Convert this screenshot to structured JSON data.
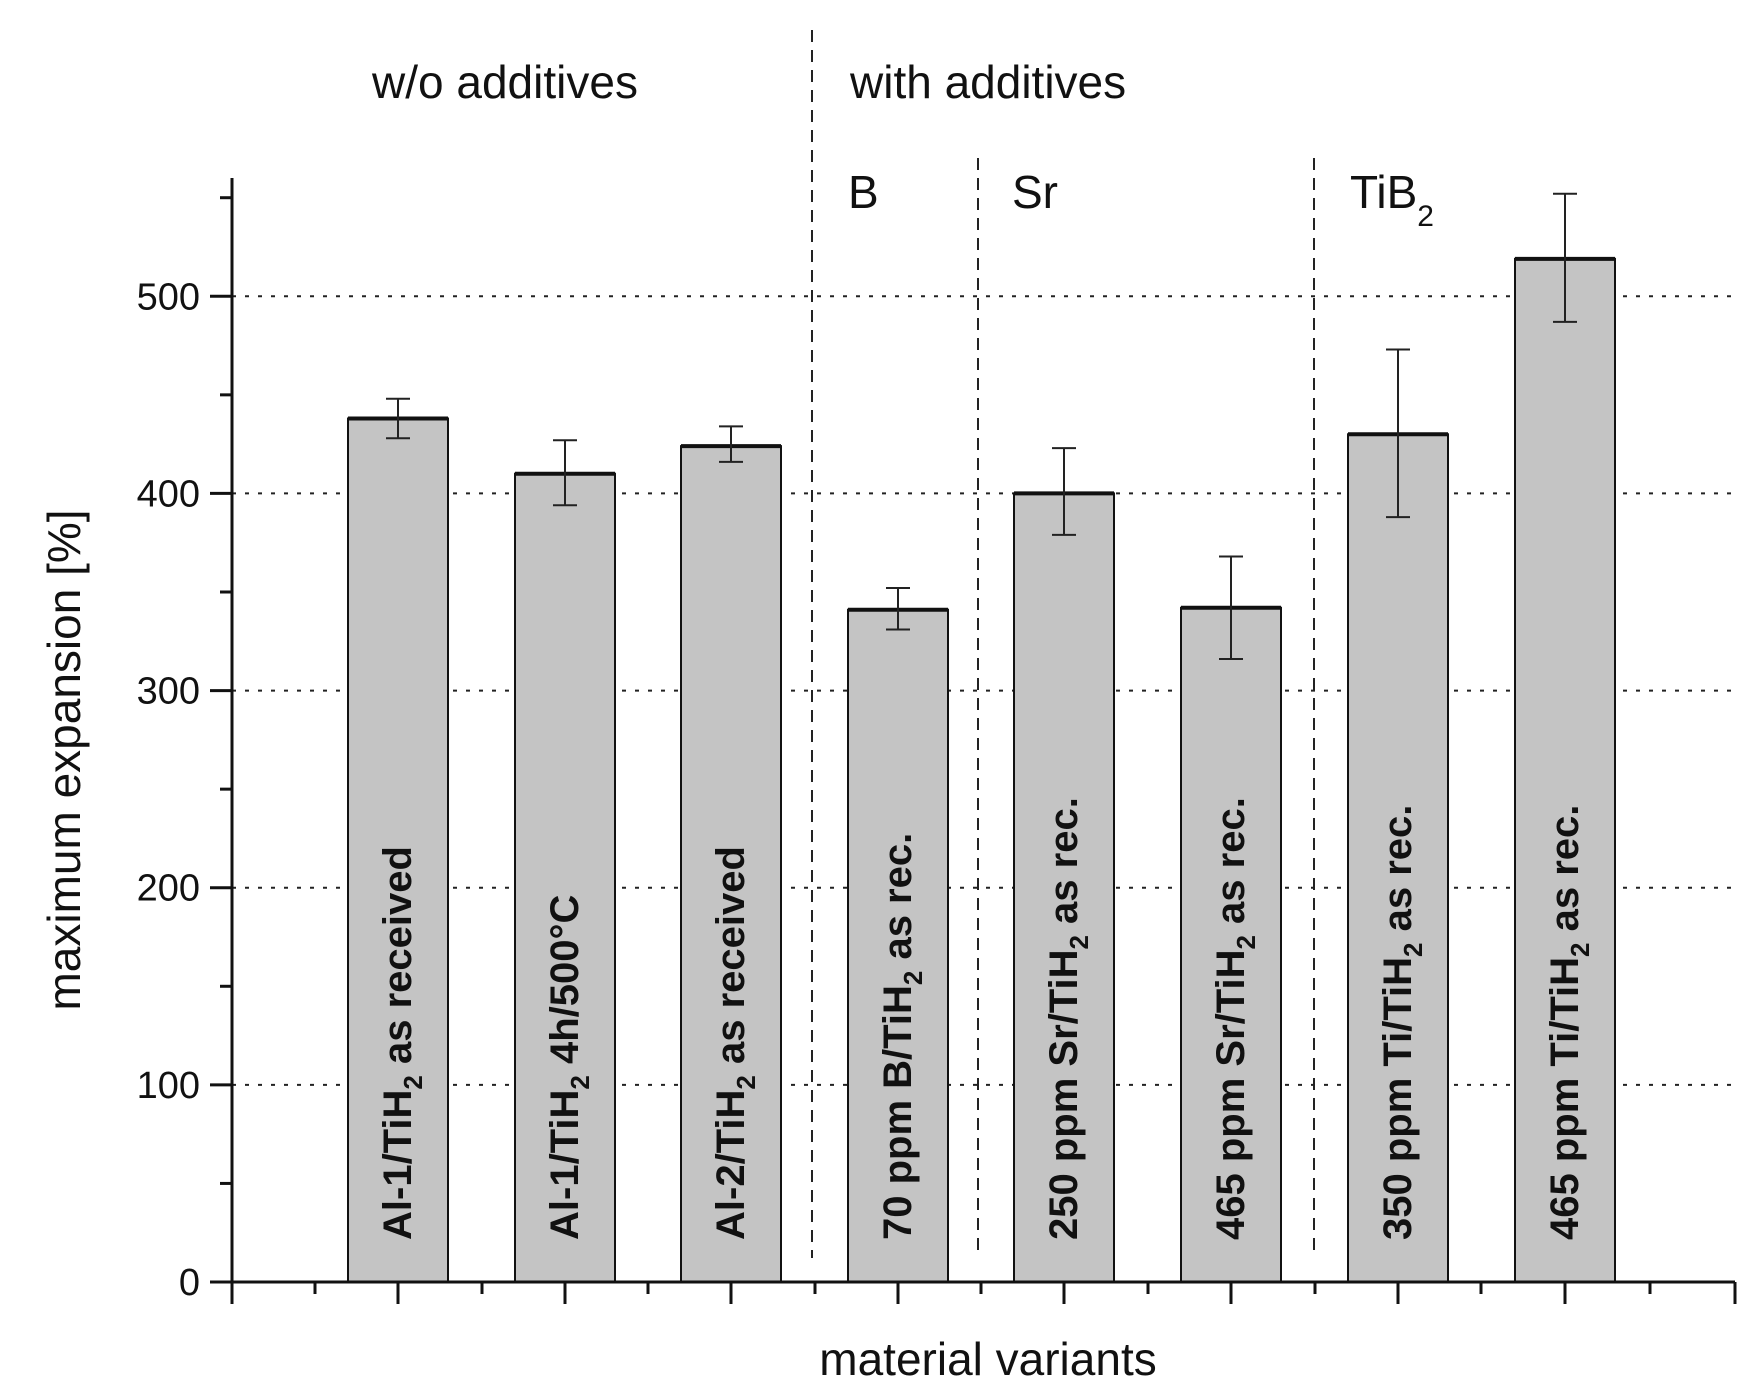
{
  "chart_data": {
    "type": "bar",
    "xlabel": "material variants",
    "ylabel": "maximum expansion [%]",
    "ylim": [
      0,
      560
    ],
    "yticks": [
      0,
      100,
      200,
      300,
      400,
      500
    ],
    "grid": "horizontal dotted",
    "categories": [
      {
        "parts": [
          "Al-1/TiH",
          "2",
          " as received"
        ]
      },
      {
        "parts": [
          "Al-1/TiH",
          "2",
          " 4h/500°C"
        ]
      },
      {
        "parts": [
          "Al-2/TiH",
          "2",
          " as received"
        ]
      },
      {
        "parts": [
          "70 ppm B/TiH",
          "2",
          " as rec."
        ]
      },
      {
        "parts": [
          "250 ppm Sr/TiH",
          "2",
          " as rec."
        ]
      },
      {
        "parts": [
          "465 ppm Sr/TiH",
          "2",
          " as rec."
        ]
      },
      {
        "parts": [
          "350 ppm Ti/TiH",
          "2",
          " as rec."
        ]
      },
      {
        "parts": [
          "465 ppm Ti/TiH",
          "2",
          " as rec."
        ]
      }
    ],
    "values": [
      438,
      410,
      424,
      341,
      400,
      342,
      430,
      519
    ],
    "error_low": [
      428,
      394,
      416,
      331,
      379,
      316,
      388,
      487
    ],
    "error_high": [
      448,
      427,
      434,
      352,
      423,
      368,
      473,
      552
    ],
    "groups": [
      {
        "label": "w/o additives",
        "start": 0,
        "end": 2
      },
      {
        "label": "with additives",
        "start": 3,
        "end": 7
      }
    ],
    "subgroups": [
      {
        "label": "B",
        "sub": "",
        "start": 3,
        "end": 3
      },
      {
        "label": "Sr",
        "sub": "",
        "start": 4,
        "end": 5
      },
      {
        "label": "TiB",
        "sub": "2",
        "start": 6,
        "end": 7
      }
    ]
  }
}
